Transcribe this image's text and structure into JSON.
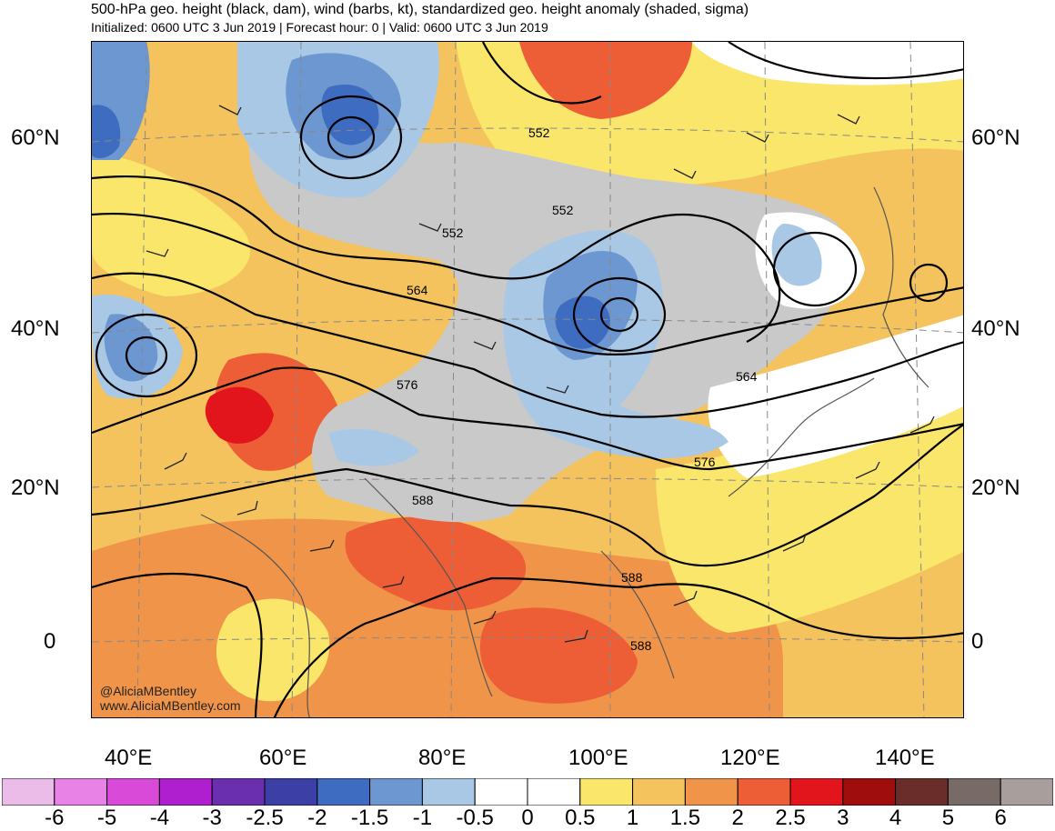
{
  "header": {
    "title": "500-hPa geo. height (black, dam), wind (barbs, kt), standardized geo. height anomaly (shaded, sigma)",
    "subtitle": "Initialized: 0600 UTC 3 Jun 2019 | Forecast hour: 0 | Valid: 0600 UTC 3 Jun 2019"
  },
  "map": {
    "lat_labels": [
      "60°N",
      "40°N",
      "20°N",
      "0"
    ],
    "lon_labels": [
      "40°E",
      "60°E",
      "80°E",
      "100°E",
      "120°E",
      "140°E"
    ],
    "contour_labels": [
      "552",
      "552",
      "552",
      "564",
      "564",
      "576",
      "576",
      "588",
      "588",
      "588"
    ],
    "credit_handle": "@AliciaMBentley",
    "credit_site": "www.AliciaMBentley.com"
  },
  "colorbar": {
    "labels": [
      "-6",
      "-5",
      "-4",
      "-3",
      "-2.5",
      "-2",
      "-1.5",
      "-1",
      "-0.5",
      "0",
      "0.5",
      "1",
      "1.5",
      "2",
      "2.5",
      "3",
      "4",
      "5",
      "6"
    ],
    "colors": [
      "#ecbce9",
      "#e882e6",
      "#d94ad9",
      "#b01fcf",
      "#6a2fae",
      "#3b3fa6",
      "#3e6cc0",
      "#6d97d0",
      "#a8c8e6",
      "#ffffff",
      "#ffffff",
      "#f9e66b",
      "#f4c35d",
      "#f0944a",
      "#ed5e36",
      "#e3151c",
      "#a00d0d",
      "#6b2d2a",
      "#786a66",
      "#a89e9c"
    ]
  }
}
